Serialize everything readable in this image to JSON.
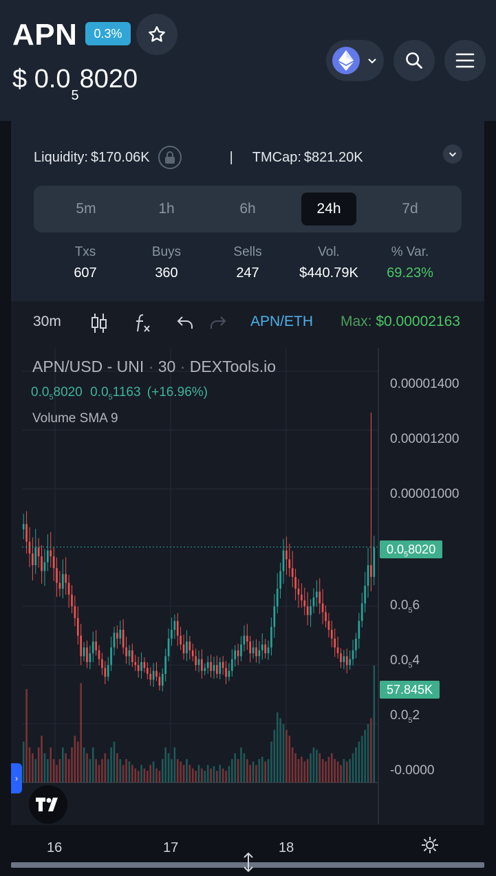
{
  "header": {
    "ticker": "APN",
    "tax_badge": "0.3%",
    "price_prefix": "$ 0.0",
    "price_zero_count": "5",
    "price_digits": "8020"
  },
  "stats": {
    "liquidity_label": "Liquidity:",
    "liquidity_value": "$170.06K",
    "separator": "|",
    "tmcap_label": "TMCap:",
    "tmcap_value": "$821.20K",
    "timeframes": [
      "5m",
      "1h",
      "6h",
      "24h",
      "7d"
    ],
    "active_timeframe": "24h",
    "metrics": [
      {
        "label": "Txs",
        "value": "607"
      },
      {
        "label": "Buys",
        "value": "360"
      },
      {
        "label": "Sells",
        "value": "247"
      },
      {
        "label": "Vol.",
        "value": "$440.79K"
      },
      {
        "label": "% Var.",
        "value": "69.23%"
      }
    ]
  },
  "toolbar": {
    "interval": "30m",
    "pair": "APN/ETH",
    "max_label": "Max:",
    "max_value": "$0.00002163"
  },
  "chart": {
    "title_pair": "APN/USD - UNI",
    "title_dot": "·",
    "title_interval": "30",
    "title_source": "DEXTools.io",
    "ohlc_a_prefix": "0.0",
    "ohlc_a_sub": "5",
    "ohlc_a_digits": "8020",
    "ohlc_b_prefix": "0.0",
    "ohlc_b_sub": "5",
    "ohlc_b_digits": "1163",
    "ohlc_change": "(+16.96%)",
    "volume_label": "Volume SMA 9",
    "y_axis_labels": [
      {
        "prefix": "0.00001400",
        "sub": "",
        "digits": ""
      },
      {
        "prefix": "0.00001200",
        "sub": "",
        "digits": ""
      },
      {
        "prefix": "0.00001000",
        "sub": "",
        "digits": ""
      },
      {
        "prefix": "0.0",
        "sub": "5",
        "digits": "6"
      },
      {
        "prefix": "0.0",
        "sub": "5",
        "digits": "4"
      },
      {
        "prefix": "0.0",
        "sub": "5",
        "digits": "2"
      },
      {
        "prefix": "-0.0000",
        "sub": "",
        "digits": ""
      }
    ],
    "current_price_tag": {
      "prefix": "0.0",
      "sub": "5",
      "digits": "8020"
    },
    "volume_tag": "57.845K",
    "x_labels": [
      "16",
      "17",
      "18"
    ],
    "colors": {
      "up": "#26a69a",
      "down": "#ef5350",
      "grid": "#262b36"
    }
  },
  "chart_data": {
    "type": "candlestick",
    "title": "APN/USD - UNI · 30 · DEXTools.io",
    "x_ticks": [
      "16",
      "17",
      "18"
    ],
    "ylim": [
      0,
      1.48e-05
    ],
    "last_price": 8.02e-06,
    "last_volume": "57.845K",
    "close": [
      8.8e-06,
      8.2e-06,
      7.8e-06,
      7.4e-06,
      8e-06,
      7.7e-06,
      7.2e-06,
      7.5e-06,
      7.9e-06,
      7.7e-06,
      7.3e-06,
      6.8e-06,
      6.6e-06,
      7.1e-06,
      6.8e-06,
      6.4e-06,
      6e-06,
      5.6e-06,
      5e-06,
      4.3e-06,
      4.6e-06,
      4.1e-06,
      4.4e-06,
      4.8e-06,
      4.5e-06,
      4.2e-06,
      3.9e-06,
      3.6e-06,
      4e-06,
      4.6e-06,
      5.1e-06,
      4.9e-06,
      5.2e-06,
      4.6e-06,
      4.3e-06,
      4.5e-06,
      4.1e-06,
      4e-06,
      3.8e-06,
      4.1e-06,
      3.9e-06,
      3.7e-06,
      3.5e-06,
      3.8e-06,
      3.6e-06,
      3.3e-06,
      3.7e-06,
      4.3e-06,
      4.9e-06,
      5.2e-06,
      5.5e-06,
      5e-06,
      4.7e-06,
      4.4e-06,
      4.8e-06,
      4.5e-06,
      4.3e-06,
      4e-06,
      4.2e-06,
      3.8e-06,
      3.9e-06,
      4.1e-06,
      3.8e-06,
      4e-06,
      3.7e-06,
      4.1e-06,
      3.9e-06,
      3.6e-06,
      3.8e-06,
      4.2e-06,
      4.5e-06,
      4.3e-06,
      4.7e-06,
      5e-06,
      4.8e-06,
      4.4e-06,
      4.6e-06,
      4.3e-06,
      4.5e-06,
      4.7e-06,
      4.4e-06,
      4.6e-06,
      5.3e-06,
      6e-06,
      6.6e-06,
      7.2e-06,
      7.9e-06,
      7.6e-06,
      7.3e-06,
      7e-06,
      6.6e-06,
      6.4e-06,
      6.2e-06,
      6e-06,
      5.7e-06,
      6e-06,
      6.3e-06,
      6.5e-06,
      6.1e-06,
      5.8e-06,
      5.5e-06,
      5.2e-06,
      4.9e-06,
      4.6e-06,
      4.4e-06,
      4.1e-06,
      4.3e-06,
      4e-06,
      4.2e-06,
      4.5e-06,
      4.9e-06,
      5.5e-06,
      6.1e-06,
      6.7e-06,
      7.4e-06,
      7e-06,
      8e-06
    ],
    "volume_relative": [
      0.35,
      0.8,
      0.3,
      0.25,
      0.2,
      0.3,
      0.4,
      0.25,
      0.2,
      0.3,
      0.2,
      0.15,
      0.2,
      0.3,
      0.25,
      0.2,
      0.3,
      0.4,
      0.35,
      0.85,
      0.3,
      0.25,
      0.2,
      0.3,
      0.2,
      0.15,
      0.2,
      0.25,
      0.2,
      0.3,
      0.35,
      0.25,
      0.2,
      0.15,
      0.2,
      0.18,
      0.15,
      0.12,
      0.1,
      0.15,
      0.12,
      0.1,
      0.15,
      0.18,
      0.12,
      0.1,
      0.2,
      0.3,
      0.25,
      0.2,
      0.3,
      0.2,
      0.18,
      0.15,
      0.2,
      0.15,
      0.12,
      0.1,
      0.15,
      0.12,
      0.1,
      0.15,
      0.12,
      0.14,
      0.1,
      0.15,
      0.12,
      0.1,
      0.14,
      0.2,
      0.25,
      0.2,
      0.3,
      0.25,
      0.2,
      0.15,
      0.18,
      0.15,
      0.2,
      0.22,
      0.18,
      0.2,
      0.35,
      0.45,
      0.6,
      0.55,
      0.5,
      0.45,
      0.4,
      0.3,
      0.25,
      0.2,
      0.22,
      0.18,
      0.2,
      0.25,
      0.3,
      0.28,
      0.25,
      0.2,
      0.18,
      0.22,
      0.25,
      0.2,
      0.18,
      0.15,
      0.2,
      0.18,
      0.2,
      0.25,
      0.3,
      0.35,
      0.4,
      0.45,
      0.5,
      0.55,
      1.0
    ]
  }
}
